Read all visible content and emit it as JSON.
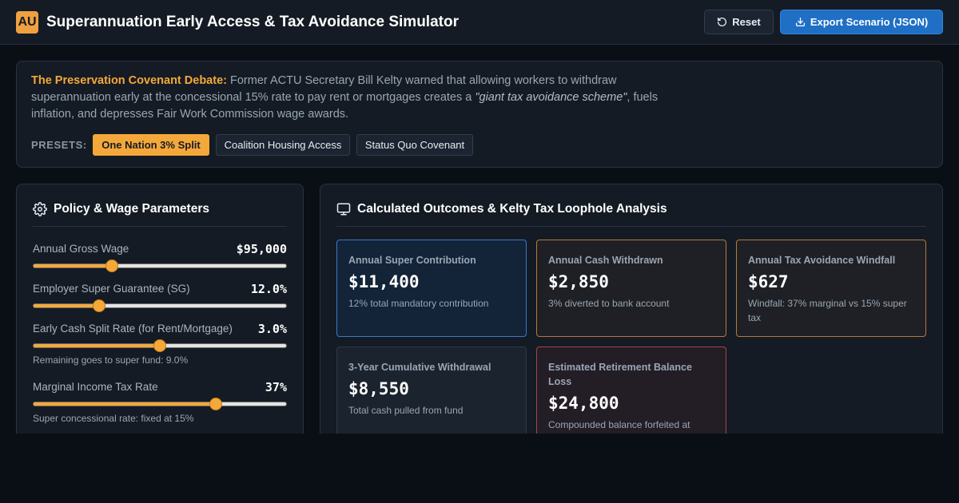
{
  "app": {
    "logo": "AU",
    "title": "Superannuation Early Access & Tax Avoidance Simulator",
    "reset_label": "Reset",
    "export_label": "Export Scenario (JSON)",
    "reset_icon": "rotate-ccw-icon",
    "export_icon": "download-icon"
  },
  "debate": {
    "title": "The Preservation Covenant Debate:",
    "text_before": "Former ACTU Secretary Bill Kelty warned that allowing workers to withdraw superannuation early at the concessional 15% rate to pay rent or mortgages creates a",
    "quote": "\"giant tax avoidance scheme\"",
    "text_after": ", fuels inflation, and depresses Fair Work Commission wage awards.",
    "presets_label": "PRESETS:",
    "presets": [
      "One Nation 3% Split",
      "Coalition Housing Access",
      "Status Quo Covenant"
    ],
    "active_preset": 0
  },
  "parameters": {
    "title": "Policy & Wage Parameters",
    "icon": "gear-icon",
    "items": [
      {
        "label": "Annual Gross Wage",
        "value": "$95,000",
        "position": 0.31,
        "note": ""
      },
      {
        "label": "Employer Super Guarantee (SG)",
        "value": "12.0%",
        "position": 0.26,
        "note": ""
      },
      {
        "label": "Early Cash Split Rate (for Rent/Mortgage)",
        "value": "3.0%",
        "position": 0.5,
        "note": "Remaining goes to super fund: 9.0%"
      },
      {
        "label": "Marginal Income Tax Rate",
        "value": "37%",
        "position": 0.72,
        "note": "Super concessional rate: fixed at 15%"
      }
    ]
  },
  "outcomes": {
    "title": "Calculated Outcomes & Kelty Tax Loophole Analysis",
    "icon": "monitor-icon",
    "cards": [
      {
        "title": "Annual Super Contribution",
        "value": "$11,400",
        "note": "12% total mandatory contribution",
        "accent": "#3a78c9"
      },
      {
        "title": "Annual Cash Withdrawn",
        "value": "$2,850",
        "note": "3% diverted to bank account",
        "accent": "#b7793a"
      },
      {
        "title": "Annual Tax Avoidance Windfall",
        "value": "$627",
        "note": "Windfall: 37% marginal vs 15% super tax",
        "accent": "#b7793a"
      },
      {
        "title": "3-Year Cumulative Withdrawal",
        "value": "$8,550",
        "note": "Total cash pulled from fund",
        "accent": "#2e3845"
      },
      {
        "title": "Estimated Retirement Balance Loss",
        "value": "$24,800",
        "note": "Compounded balance forfeited at",
        "accent": "#a9434a"
      }
    ]
  }
}
